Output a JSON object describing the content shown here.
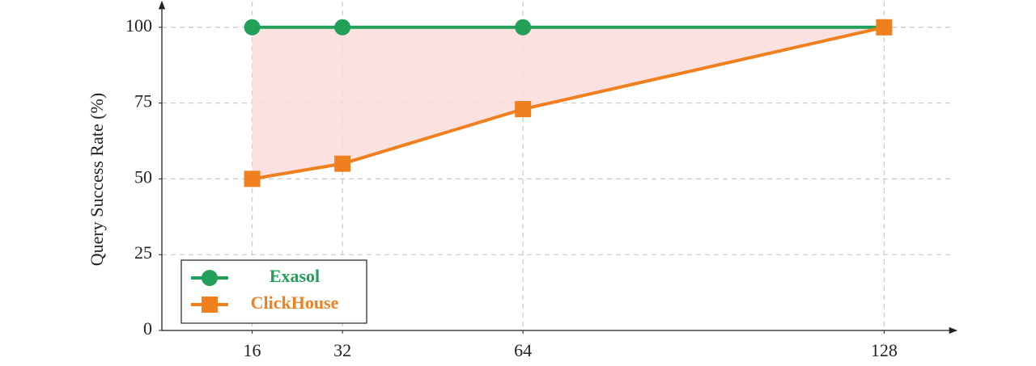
{
  "chart_data": {
    "type": "line",
    "y_label": "Query Success Rate (%)",
    "x": [
      16,
      32,
      64,
      128
    ],
    "series": [
      {
        "name": "Exasol",
        "color": "#22a05a",
        "marker": "circle",
        "values": [
          100,
          100,
          100,
          100
        ]
      },
      {
        "name": "ClickHouse",
        "color": "#f07f1d",
        "marker": "square",
        "values": [
          50,
          55,
          73,
          100
        ]
      }
    ],
    "fill_between_color": "#fbdcdc",
    "xlim": [
      0,
      140
    ],
    "xticks": [
      16,
      32,
      64,
      128
    ],
    "ylim": [
      0,
      109
    ],
    "yticks": [
      0,
      25,
      50,
      75,
      100
    ],
    "grid": true,
    "legend": "lower left"
  }
}
